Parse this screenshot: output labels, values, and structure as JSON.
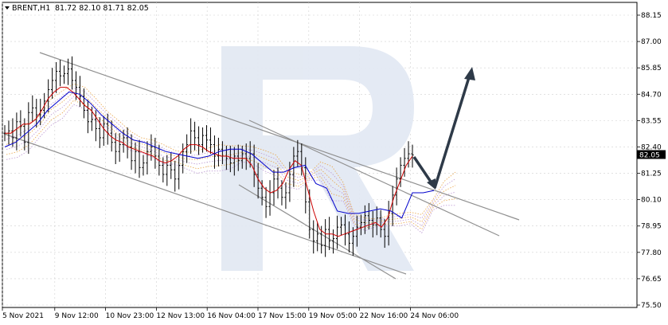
{
  "header": {
    "symbol_timeframe": "BRENT,H1",
    "ohlc": "81.72 82.10 81.71 82.05"
  },
  "chart_data": {
    "type": "candlestick",
    "symbol": "BRENT",
    "timeframe": "H1",
    "open": 81.72,
    "high": 82.1,
    "low": 81.71,
    "close": 82.05,
    "current_price_label": "82.05",
    "y_ticks": [
      "88.15",
      "87.00",
      "85.85",
      "84.70",
      "83.55",
      "82.40",
      "81.25",
      "80.10",
      "78.95",
      "77.80",
      "76.65",
      "75.50"
    ],
    "ylim": [
      75.5,
      88.15
    ],
    "x_ticks": [
      "5 Nov 2021",
      "9 Nov 12:00",
      "10 Nov 23:00",
      "12 Nov 13:00",
      "16 Nov 04:00",
      "17 Nov 15:00",
      "19 Nov 05:00",
      "22 Nov 16:00",
      "24 Nov 06:00"
    ],
    "grid": true,
    "colors": {
      "candles": "#000000",
      "tenkan": "#cc0000",
      "kijun": "#0000cc",
      "cloud_orange": "#e8a040",
      "cloud_purple": "#b890d0",
      "channel": "#909090",
      "arrow": "#2e3a48",
      "watermark": "#e3e9f3"
    },
    "price_series": [
      83.0,
      83.1,
      82.8,
      83.5,
      83.3,
      82.6,
      83.9,
      84.1,
      83.8,
      84.0,
      84.4,
      84.9,
      85.3,
      85.7,
      85.5,
      85.6,
      85.8,
      85.3,
      85.0,
      84.6,
      84.0,
      83.5,
      83.6,
      83.2,
      82.8,
      83.4,
      83.0,
      82.6,
      82.2,
      82.5,
      82.8,
      82.4,
      81.8,
      82.2,
      81.5,
      81.7,
      82.2,
      82.4,
      82.0,
      81.6,
      81.2,
      81.6,
      81.4,
      81.0,
      81.6,
      82.2,
      82.5,
      83.1,
      82.8,
      82.5,
      82.9,
      82.7,
      82.5,
      82.0,
      82.3,
      82.0,
      81.9,
      81.7,
      82.0,
      81.8,
      82.1,
      81.9,
      82.1,
      81.2,
      80.6,
      80.2,
      79.8,
      80.4,
      81.0,
      80.6,
      80.2,
      80.4,
      81.2,
      82.0,
      82.2,
      81.5,
      80.0,
      78.8,
      78.3,
      78.6,
      78.1,
      78.8,
      78.3,
      78.4,
      78.9,
      79.0,
      78.6,
      78.2,
      78.5,
      78.9,
      79.1,
      79.4,
      79.2,
      79.0,
      79.3,
      78.8,
      78.5,
      79.5,
      80.3,
      81.0,
      81.6,
      81.9,
      82.1,
      82.05
    ],
    "tenkan_sen": [
      83.0,
      83.0,
      83.2,
      83.4,
      83.4,
      83.6,
      84.0,
      84.5,
      84.8,
      85.0,
      85.0,
      84.8,
      84.5,
      84.2,
      84.0,
      83.6,
      83.2,
      82.9,
      82.7,
      82.6,
      82.4,
      82.3,
      82.2,
      82.1,
      82.0,
      81.8,
      81.7,
      81.8,
      82.0,
      82.3,
      82.5,
      82.5,
      82.4,
      82.2,
      82.1,
      82.0,
      82.0,
      81.9,
      81.9,
      81.9,
      81.6,
      81.0,
      80.6,
      80.4,
      80.5,
      80.8,
      81.4,
      81.8,
      81.6,
      80.6,
      79.6,
      78.8,
      78.6,
      78.6,
      78.5,
      78.6,
      78.7,
      78.8,
      78.9,
      79.0,
      79.1,
      78.9,
      79.3,
      80.2,
      80.9,
      81.6,
      82.0
    ],
    "kijun_sen": [
      82.4,
      82.6,
      83.0,
      83.4,
      84.0,
      84.4,
      84.8,
      84.7,
      84.3,
      83.8,
      83.4,
      83.0,
      82.7,
      82.6,
      82.4,
      82.2,
      82.1,
      82.0,
      81.9,
      82.0,
      82.2,
      82.3,
      82.3,
      82.1,
      81.7,
      81.3,
      81.3,
      81.5,
      81.6,
      80.8,
      80.6,
      79.6,
      79.5,
      79.5,
      79.6,
      79.7,
      79.6,
      79.3,
      80.4,
      80.4,
      80.5
    ],
    "annotations": {
      "channels": "two descending channel lines plus a converging lower trendline",
      "forecast": "arrow down to cloud then long arrow up"
    }
  }
}
